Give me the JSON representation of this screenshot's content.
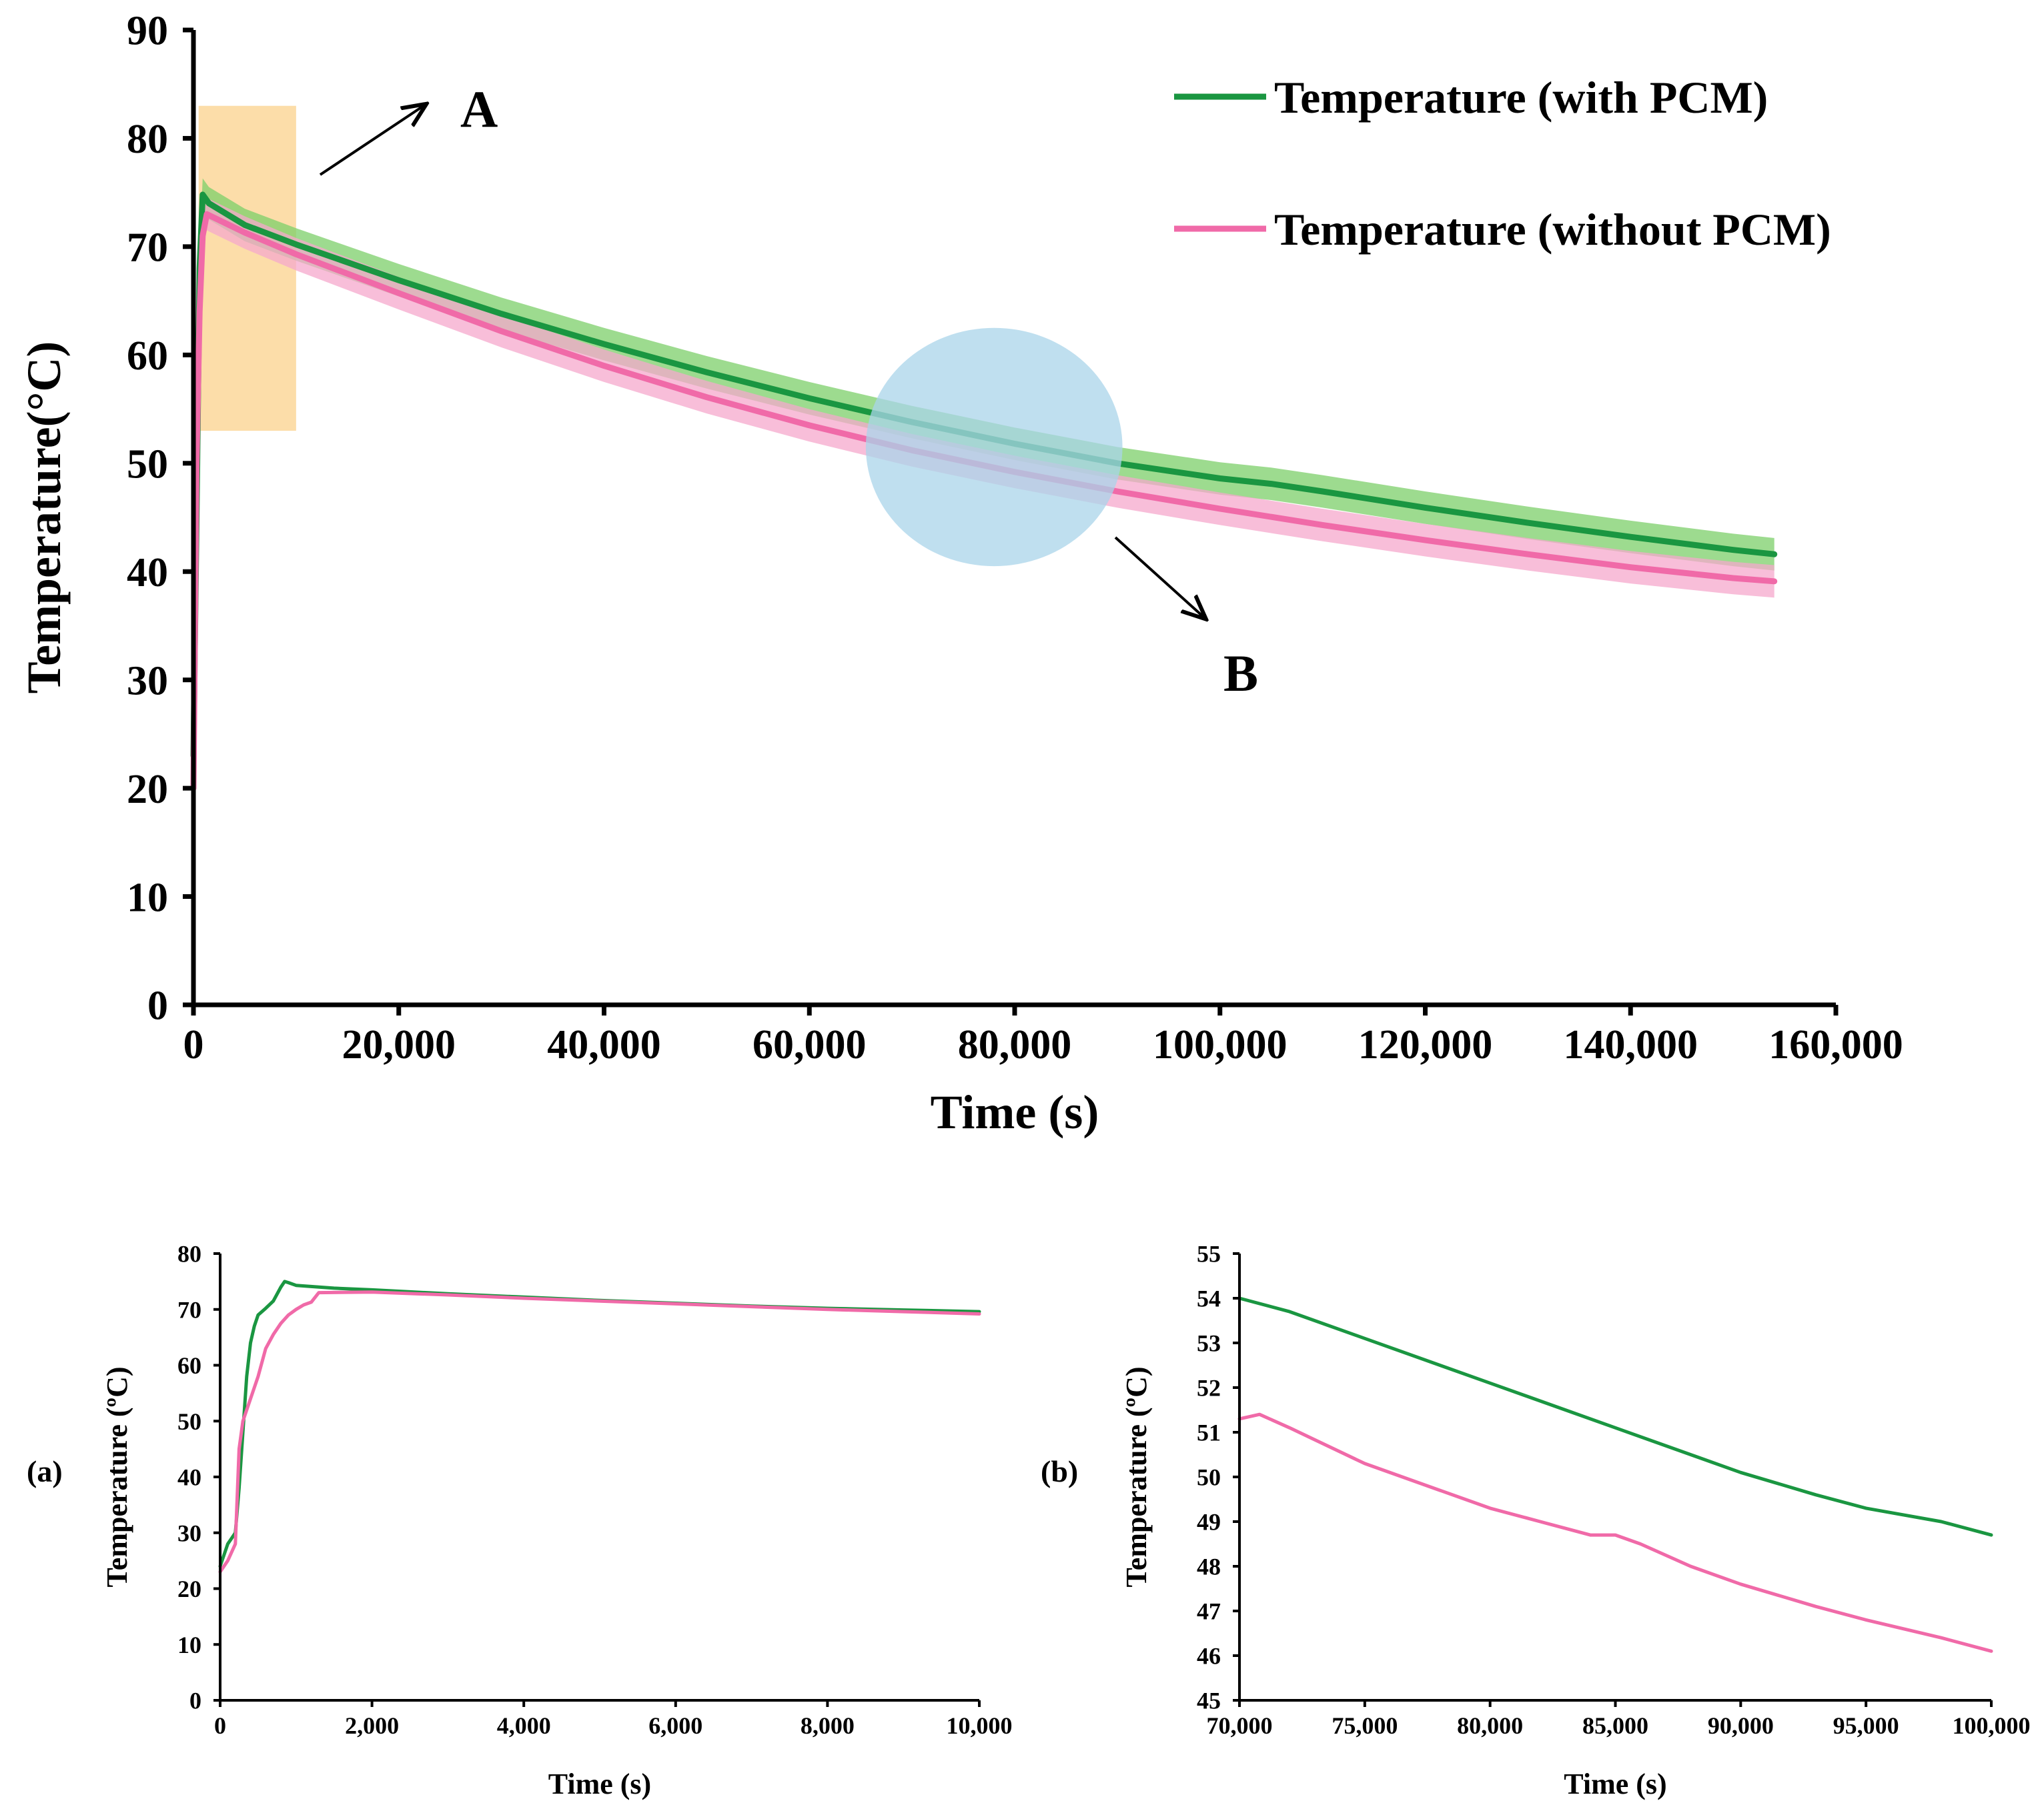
{
  "colors": {
    "with_pcm": "#1a9641",
    "with_pcm_band": "#7ccf6a",
    "without_pcm": "#f06aa8",
    "without_pcm_band": "#f5a8cc",
    "highlight_a": "#fcd9a0",
    "highlight_b": "#a9d4ea",
    "axis": "#000000"
  },
  "chart_data": [
    {
      "id": "main",
      "type": "line",
      "xlabel": "Time  (s)",
      "ylabel": "Temperature(°C)",
      "xlim": [
        0,
        160000
      ],
      "ylim": [
        0,
        90
      ],
      "x_ticks": [
        0,
        20000,
        40000,
        60000,
        80000,
        100000,
        120000,
        140000,
        160000
      ],
      "x_tick_labels": [
        "0",
        "20,000",
        "40,000",
        "60,000",
        "80,000",
        "100,000",
        "120,000",
        "140,000",
        "160,000"
      ],
      "y_ticks": [
        0,
        10,
        20,
        30,
        40,
        50,
        60,
        70,
        80,
        90
      ],
      "y_tick_labels": [
        "0",
        "10",
        "20",
        "30",
        "40",
        "50",
        "60",
        "70",
        "80",
        "90"
      ],
      "legend": {
        "placement": "top-right",
        "entries": [
          "Temperature (with PCM)",
          "Temperature (without PCM)"
        ]
      },
      "series": [
        {
          "name": "Temperature (with PCM)",
          "color_key": "with_pcm",
          "band_color_key": "with_pcm_band",
          "band_width": 1.5,
          "x": [
            0,
            300,
            600,
            900,
            1500,
            5000,
            10000,
            20000,
            30000,
            40000,
            50000,
            60000,
            70000,
            80000,
            90000,
            100000,
            105000,
            110000,
            120000,
            130000,
            140000,
            150000,
            154000
          ],
          "y": [
            23,
            45,
            68,
            74.8,
            74,
            72,
            70.2,
            66.9,
            63.8,
            61,
            58.4,
            56,
            53.8,
            51.8,
            50,
            48.6,
            48.1,
            47.4,
            45.9,
            44.5,
            43.2,
            42,
            41.6
          ]
        },
        {
          "name": "Temperature (without PCM)",
          "color_key": "without_pcm",
          "band_color_key": "without_pcm_band",
          "band_width": 1.5,
          "x": [
            0,
            300,
            600,
            900,
            1300,
            5000,
            10000,
            20000,
            30000,
            40000,
            50000,
            60000,
            70000,
            80000,
            90000,
            100000,
            110000,
            120000,
            130000,
            140000,
            150000,
            154000
          ],
          "y": [
            20,
            50,
            64,
            71,
            73,
            71.3,
            69.3,
            65.7,
            62.2,
            59,
            56.1,
            53.5,
            51.2,
            49.2,
            47.4,
            45.8,
            44.3,
            42.9,
            41.6,
            40.4,
            39.4,
            39.1
          ]
        }
      ],
      "annotations": [
        {
          "label": "A",
          "region": "rectangle",
          "x_range": [
            500,
            10000
          ],
          "y_range": [
            53,
            83
          ]
        },
        {
          "label": "B",
          "region": "circle",
          "center": [
            78000,
            51.5
          ],
          "radius_x": 12500,
          "radius_y": 11
        }
      ]
    },
    {
      "id": "inset_a",
      "panel_label": "(a)",
      "type": "line",
      "xlabel": "Time  (s)",
      "ylabel": "Temperature (ºC)",
      "xlim": [
        0,
        10000
      ],
      "ylim": [
        0,
        80
      ],
      "x_ticks": [
        0,
        2000,
        4000,
        6000,
        8000,
        10000
      ],
      "x_tick_labels": [
        "0",
        "2,000",
        "4,000",
        "6,000",
        "8,000",
        "10,000"
      ],
      "y_ticks": [
        0,
        10,
        20,
        30,
        40,
        50,
        60,
        70,
        80
      ],
      "y_tick_labels": [
        "0",
        "10",
        "20",
        "30",
        "40",
        "50",
        "60",
        "70",
        "80"
      ],
      "series": [
        {
          "name": "Temperature (with PCM)",
          "color_key": "with_pcm",
          "x": [
            0,
            100,
            200,
            250,
            300,
            350,
            400,
            450,
            500,
            600,
            700,
            800,
            850,
            900,
            1000,
            1500,
            2000,
            3000,
            4000,
            5000,
            6000,
            7000,
            8000,
            9000,
            10000
          ],
          "y": [
            24,
            28,
            30,
            38,
            48,
            58,
            64,
            67,
            69,
            70.2,
            71.5,
            74,
            75,
            74.8,
            74.3,
            73.8,
            73.5,
            72.8,
            72.2,
            71.6,
            71.1,
            70.6,
            70.2,
            69.9,
            69.6
          ]
        },
        {
          "name": "Temperature (without PCM)",
          "color_key": "without_pcm",
          "x": [
            0,
            100,
            200,
            250,
            300,
            400,
            500,
            600,
            700,
            800,
            900,
            1000,
            1100,
            1200,
            1300,
            2000,
            3000,
            4000,
            5000,
            6000,
            7000,
            8000,
            9000,
            10000
          ],
          "y": [
            23,
            25,
            28,
            45,
            50,
            54,
            58,
            63,
            65.5,
            67.5,
            69,
            70,
            70.8,
            71.3,
            73,
            73.1,
            72.6,
            72,
            71.5,
            71,
            70.5,
            70,
            69.6,
            69.2
          ]
        }
      ]
    },
    {
      "id": "inset_b",
      "panel_label": "(b)",
      "type": "line",
      "xlabel": "Time  (s)",
      "ylabel": "Temperature (ºC)",
      "xlim": [
        70000,
        100000
      ],
      "ylim": [
        45,
        55
      ],
      "x_ticks": [
        70000,
        75000,
        80000,
        85000,
        90000,
        95000,
        100000
      ],
      "x_tick_labels": [
        "70,000",
        "75,000",
        "80,000",
        "85,000",
        "90,000",
        "95,000",
        "100,000"
      ],
      "y_ticks": [
        45,
        46,
        47,
        48,
        49,
        50,
        51,
        52,
        53,
        54,
        55
      ],
      "y_tick_labels": [
        "45",
        "46",
        "47",
        "48",
        "49",
        "50",
        "51",
        "52",
        "53",
        "54",
        "55"
      ],
      "series": [
        {
          "name": "Temperature (with PCM)",
          "color_key": "with_pcm",
          "x": [
            70000,
            72000,
            75000,
            78000,
            80000,
            83000,
            85000,
            88000,
            90000,
            93000,
            95000,
            98000,
            100000
          ],
          "y": [
            54,
            53.7,
            53.1,
            52.5,
            52.1,
            51.5,
            51.1,
            50.5,
            50.1,
            49.6,
            49.3,
            49,
            48.7
          ]
        },
        {
          "name": "Temperature (without PCM)",
          "color_key": "without_pcm",
          "x": [
            70000,
            70800,
            72000,
            75000,
            78000,
            80000,
            82000,
            84000,
            85000,
            86000,
            88000,
            90000,
            93000,
            95000,
            98000,
            100000
          ],
          "y": [
            51.3,
            51.4,
            51.1,
            50.3,
            49.7,
            49.3,
            49,
            48.7,
            48.7,
            48.5,
            48,
            47.6,
            47.1,
            46.8,
            46.4,
            46.1
          ]
        }
      ]
    }
  ]
}
